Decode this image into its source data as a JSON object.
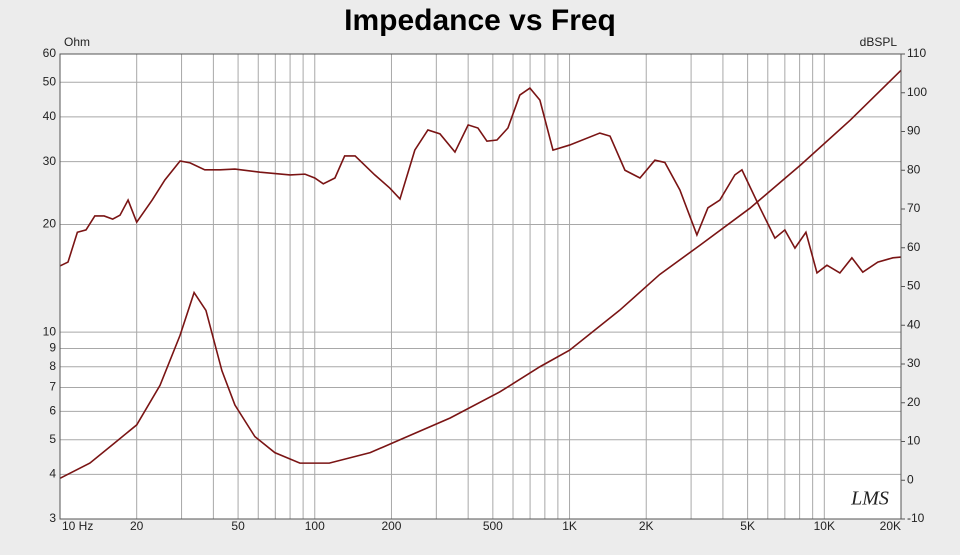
{
  "chart_data": {
    "type": "line",
    "title": "Impedance vs Freq",
    "ylabel": "Ohm",
    "y2label": "dBSPL",
    "watermark": "LMS",
    "xscale": "log",
    "yscale": "log",
    "grid": true,
    "xlim": [
      10,
      20000
    ],
    "xticks": [
      {
        "value": 10,
        "label": "10 Hz"
      },
      20,
      50,
      100,
      200,
      500,
      {
        "value": 1000,
        "label": "1K"
      },
      {
        "value": 2000,
        "label": "2K"
      },
      {
        "value": 5000,
        "label": "5K"
      },
      {
        "value": 10000,
        "label": "10K"
      },
      {
        "value": 20000,
        "label": "20K"
      }
    ],
    "xminor": [
      30,
      40,
      60,
      70,
      80,
      90,
      300,
      400,
      600,
      700,
      800,
      900,
      3000,
      4000,
      6000,
      7000,
      8000,
      9000
    ],
    "ylim": [
      3,
      60
    ],
    "yticks": [
      3,
      4,
      5,
      6,
      7,
      8,
      9,
      10,
      20,
      30,
      40,
      50,
      60
    ],
    "y2lim": [
      -10,
      110
    ],
    "y2ticks": [
      -10,
      0,
      10,
      20,
      30,
      40,
      50,
      60,
      70,
      80,
      90,
      100,
      110
    ],
    "series": [
      {
        "color": "#7a1414",
        "axis": "y",
        "x": [
          10,
          13.1,
          16.4,
          20,
          24.7,
          29.6,
          33.6,
          37.4,
          43.2,
          48.6,
          58.2,
          69.7,
          87.4,
          114,
          165,
          216,
          340,
          532,
          765,
          1000,
          1570,
          2260,
          3250,
          5100,
          8050,
          12650,
          20000
        ],
        "values": [
          3.9,
          4.3,
          4.9,
          5.5,
          7.1,
          9.8,
          12.9,
          11.5,
          7.8,
          6.25,
          5.1,
          4.6,
          4.3,
          4.3,
          4.6,
          5.0,
          5.75,
          6.8,
          8.0,
          8.9,
          11.5,
          14.5,
          17.5,
          22.2,
          29.3,
          39.2,
          54
        ]
      },
      {
        "color": "#7a1414",
        "axis": "y2",
        "x": [
          10,
          10.75,
          11.7,
          12.65,
          13.7,
          14.9,
          16.1,
          17.2,
          18.5,
          20,
          23,
          25.8,
          29.6,
          32.4,
          37,
          42.5,
          48.6,
          61,
          80,
          91.5,
          100,
          108,
          120,
          131,
          144,
          172,
          197,
          216,
          247,
          278,
          310,
          355,
          400,
          437,
          474,
          519,
          573,
          638,
          699,
          765,
          861,
          1000,
          1315,
          1442,
          1650,
          1890,
          2163,
          2367,
          2711,
          3162,
          3493,
          3891,
          4456,
          4750,
          5590,
          6400,
          7000,
          7670,
          8470,
          9360,
          10240,
          11510,
          12830,
          14160,
          16220,
          18580,
          20000
        ],
        "values": [
          55.3,
          56.3,
          64,
          64.6,
          68.2,
          68.2,
          67.4,
          68.4,
          72.3,
          66.6,
          72.3,
          77.5,
          82.4,
          81.9,
          80.1,
          80.1,
          80.3,
          79.5,
          78.8,
          79,
          78,
          76.5,
          78,
          83.7,
          83.7,
          78.8,
          75.4,
          72.6,
          85.2,
          90.4,
          89.4,
          84.7,
          91.7,
          90.9,
          87.5,
          87.8,
          90.9,
          99.4,
          101.2,
          98.1,
          85.2,
          86.5,
          89.6,
          88.8,
          80,
          78,
          82.6,
          82,
          74.9,
          63.3,
          70.3,
          72.3,
          78.8,
          80.1,
          70.3,
          62.5,
          64.6,
          59.9,
          64,
          53.5,
          55.5,
          53.5,
          57.4,
          53.7,
          56.3,
          57.4,
          57.6
        ]
      }
    ]
  }
}
